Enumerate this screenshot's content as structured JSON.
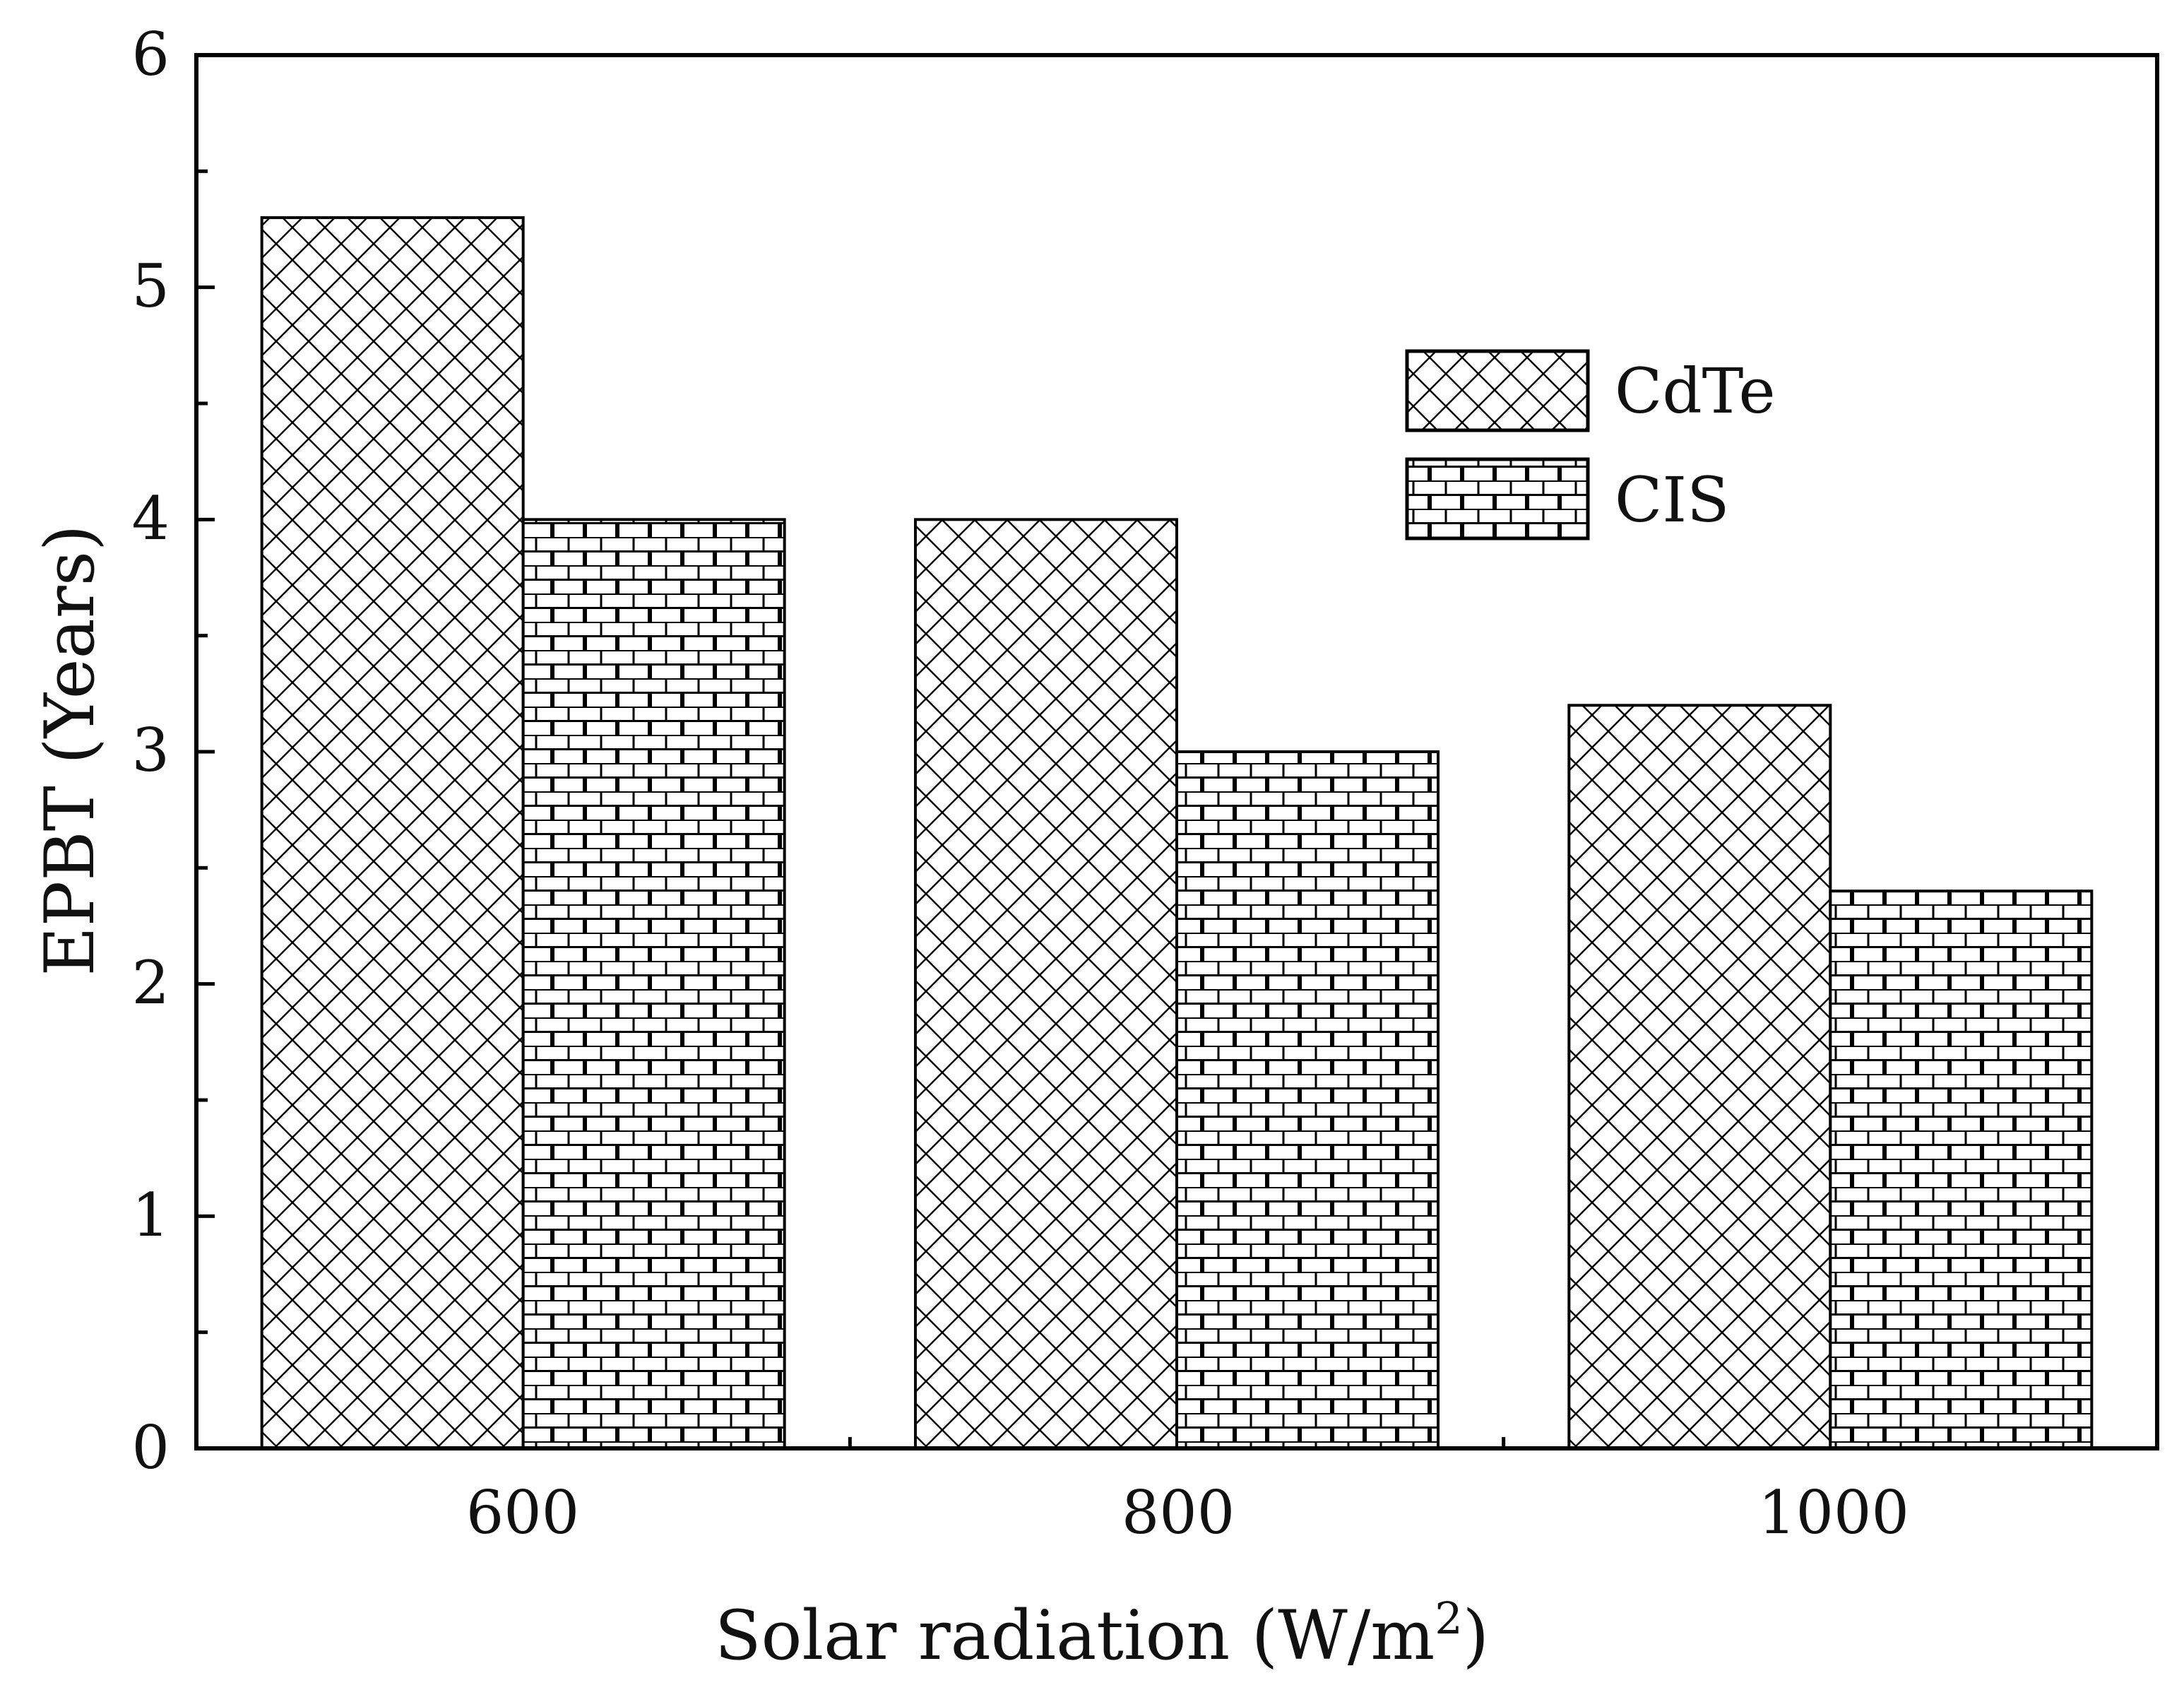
{
  "chart_data": {
    "type": "bar",
    "title": "",
    "categories": [
      "600",
      "800",
      "1000"
    ],
    "series": [
      {
        "name": "CdTe",
        "pattern": "crosshatch",
        "values": [
          5.3,
          4.0,
          3.2
        ]
      },
      {
        "name": "CIS",
        "pattern": "brick",
        "values": [
          4.0,
          3.0,
          2.4
        ]
      }
    ],
    "xlabel": "Solar radiation (W/m",
    "xlabel_sup": "2",
    "xlabel_tail": ")",
    "ylabel": "EPBT (Years)",
    "ylim": [
      0,
      6
    ],
    "yticks": [
      "0",
      "1",
      "2",
      "3",
      "4",
      "5",
      "6"
    ],
    "legend_position": "top-right",
    "colors": {
      "ink": "#000000",
      "fill": "#ffffff"
    }
  }
}
